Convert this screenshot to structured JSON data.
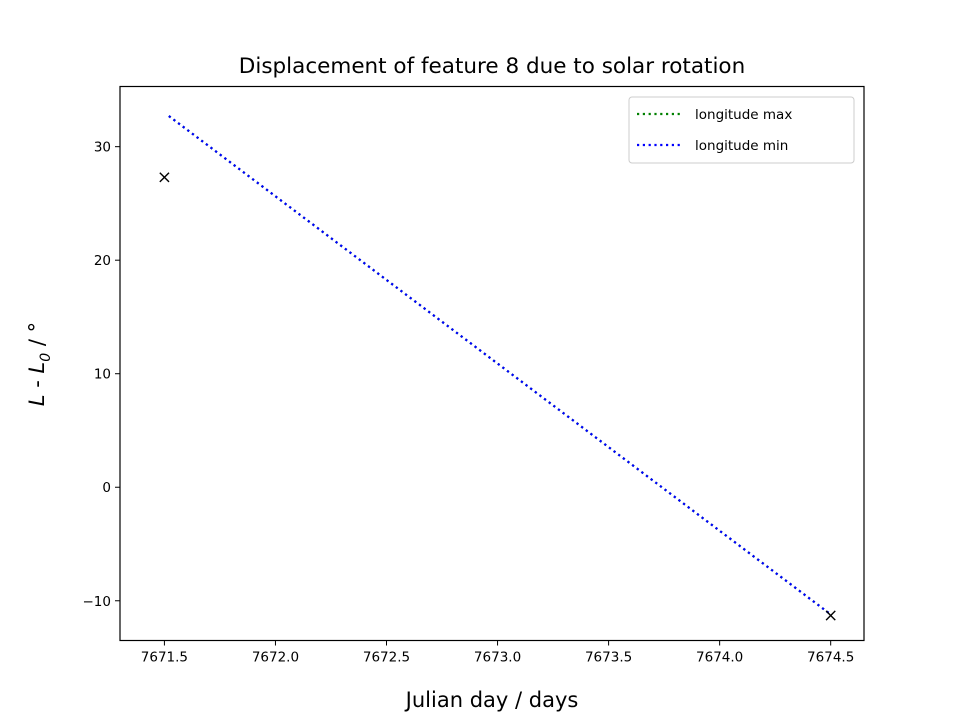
{
  "chart_data": {
    "type": "line",
    "title": "Displacement of feature 8 due to solar rotation",
    "xlabel": "Julian day / days",
    "ylabel": "L - L0 / °",
    "ylabel_parts": {
      "L": "L",
      "dash": " - ",
      "L0": "L",
      "sub": "0",
      "unit": " / °"
    },
    "xlim": [
      7671.3,
      7674.65
    ],
    "ylim": [
      -13.5,
      35.3
    ],
    "xticks": [
      7671.5,
      7672.0,
      7672.5,
      7673.0,
      7673.5,
      7674.0,
      7674.5
    ],
    "xtick_labels": [
      "7671.5",
      "7672.0",
      "7672.5",
      "7673.0",
      "7673.5",
      "7674.0",
      "7674.5"
    ],
    "yticks": [
      -10,
      0,
      10,
      20,
      30
    ],
    "ytick_labels": [
      "−10",
      "0",
      "10",
      "20",
      "30"
    ],
    "grid": false,
    "legend_position": "top-right",
    "series": [
      {
        "name": "longitude max",
        "color": "#008000",
        "style": "dotted",
        "x": [
          7671.52,
          7674.5
        ],
        "y": [
          32.7,
          -11.2
        ]
      },
      {
        "name": "longitude min",
        "color": "#0000ff",
        "style": "dotted",
        "x": [
          7671.52,
          7674.5
        ],
        "y": [
          32.7,
          -11.2
        ]
      }
    ],
    "markers": {
      "color": "#000000",
      "x": [
        7671.5,
        7674.5
      ],
      "y": [
        27.3,
        -11.3
      ]
    }
  }
}
